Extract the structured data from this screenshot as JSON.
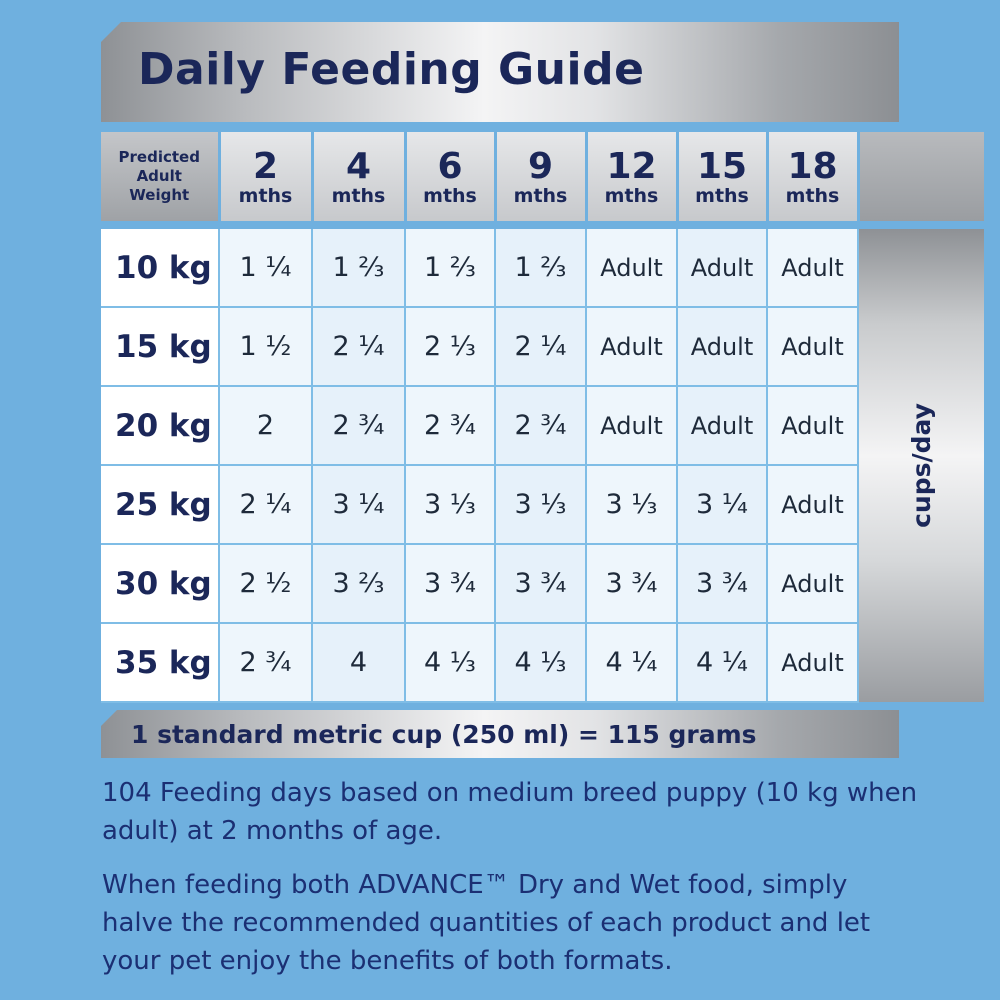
{
  "title": "Daily Feeding Guide",
  "header": {
    "weight_label_lines": [
      "Predicted",
      "Adult",
      "Weight"
    ],
    "ages": [
      {
        "num": "2",
        "unit": "mths"
      },
      {
        "num": "4",
        "unit": "mths"
      },
      {
        "num": "6",
        "unit": "mths"
      },
      {
        "num": "9",
        "unit": "mths"
      },
      {
        "num": "12",
        "unit": "mths"
      },
      {
        "num": "15",
        "unit": "mths"
      },
      {
        "num": "18",
        "unit": "mths"
      }
    ]
  },
  "unit_label": "cups/day",
  "rows": [
    {
      "weight": "10 kg",
      "values": [
        "1 ¼",
        "1 ⅔",
        "1 ⅔",
        "1 ⅔",
        "Adult",
        "Adult",
        "Adult"
      ]
    },
    {
      "weight": "15 kg",
      "values": [
        "1 ½",
        "2 ¼",
        "2 ⅓",
        "2 ¼",
        "Adult",
        "Adult",
        "Adult"
      ]
    },
    {
      "weight": "20 kg",
      "values": [
        "2",
        "2 ¾",
        "2 ¾",
        "2 ¾",
        "Adult",
        "Adult",
        "Adult"
      ]
    },
    {
      "weight": "25 kg",
      "values": [
        "2 ¼",
        "3 ¼",
        "3 ⅓",
        "3 ⅓",
        "3 ⅓",
        "3 ¼",
        "Adult"
      ]
    },
    {
      "weight": "30 kg",
      "values": [
        "2 ½",
        "3 ⅔",
        "3 ¾",
        "3 ¾",
        "3 ¾",
        "3 ¾",
        "Adult"
      ]
    },
    {
      "weight": "35 kg",
      "values": [
        "2 ¾",
        "4",
        "4 ⅓",
        "4 ⅓",
        "4 ¼",
        "4 ¼",
        "Adult"
      ]
    }
  ],
  "cup_note": "1 standard metric cup (250 ml) = 115 grams",
  "notes": [
    "104 Feeding days based on medium breed puppy (10 kg when adult) at 2 months of age.",
    "When feeding both ADVANCE™ Dry and Wet food, simply halve the recommended quantities of each product and let your pet enjoy the benefits of both formats."
  ],
  "colors": {
    "background": "#6fb0df",
    "title_text": "#1b2759",
    "body_text": "#1b2f73",
    "grid_line": "#7fbde6"
  }
}
